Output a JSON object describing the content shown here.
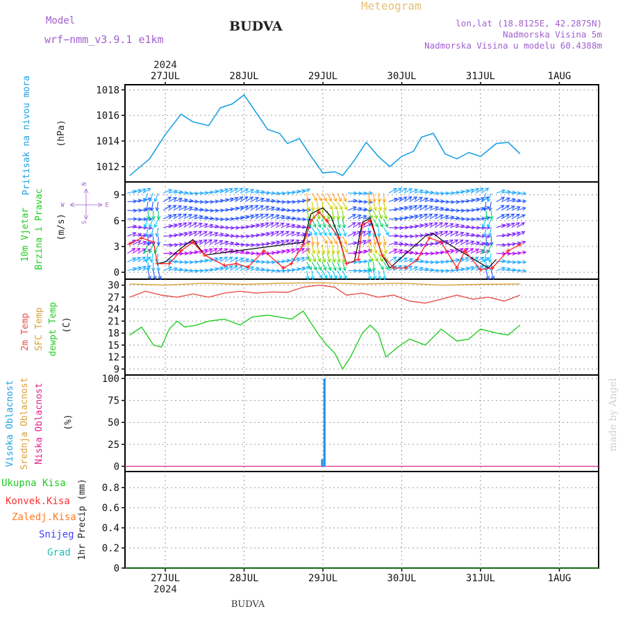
{
  "header": {
    "model_label": "Model",
    "model_value": "wrf−nmm_v3.9.1  e1km",
    "city": "BUDVA",
    "product": "Meteogram",
    "lonlat": "lon,lat (18.8125E, 42.2875N)",
    "altitude": "Nadmorska Visina 5m",
    "model_altitude": "Nadmorska Visina u modelu 60.4388m",
    "footer_city": "BUDVA",
    "watermark": "made by Angel"
  },
  "colors": {
    "pressure": "#1ba1e2",
    "wind_speed": "#ff2020",
    "wind_gust": "#000000",
    "temp2m": "#e8504a",
    "sfc_temp": "#d9a03a",
    "dewpoint": "#22cc22",
    "cloud_high": "#1e8fe8",
    "cloud_mid": "#d9a03a",
    "cloud_low": "#e0208a",
    "precip_total": "#22cc22",
    "precip_conv": "#ff3030",
    "precip_frozen": "#ff7a20",
    "snow": "#4040ff",
    "graupel": "#20c0b0",
    "axis_label_purple": "#a060d0"
  },
  "time_axis": {
    "year": "2024",
    "days": [
      "27JUL",
      "28JUL",
      "29JUL",
      "30JUL",
      "31JUL",
      "1AUG"
    ]
  },
  "panels": {
    "pressure": {
      "title": "Pritisak na nivou mora",
      "unit": "(hPa)",
      "ticks": [
        "1012",
        "1014",
        "1016",
        "1018"
      ]
    },
    "wind": {
      "title1": "10m Vjetar",
      "title2": "Brzina i Pravac",
      "unit": "(m/s)",
      "ticks": [
        "0",
        "3",
        "6",
        "9"
      ],
      "compass": {
        "n": "N",
        "s": "S",
        "w": "W",
        "e": "E"
      }
    },
    "temperature": {
      "label_2m": "2m Temp",
      "label_sfc": "SFC Temp",
      "label_dew": "dewpt Temp",
      "unit": "(C)",
      "ticks": [
        "9",
        "12",
        "15",
        "18",
        "21",
        "24",
        "27",
        "30"
      ]
    },
    "clouds": {
      "label_high": "Visoka Oblacnost",
      "label_mid": "Srednja Oblacnost",
      "label_low": "Niska Oblacnost",
      "unit": "(%)",
      "ticks": [
        "0",
        "25",
        "50",
        "75",
        "100"
      ]
    },
    "precip": {
      "label_total": "Ukupna Kisa",
      "label_conv": "Konvek.Kisa",
      "label_frozen": "Zaledj.Kisa",
      "label_snow": "Snijeg",
      "label_graupel": "Grad",
      "unit": "1hr Precip (mm)",
      "ticks": [
        "0",
        "0.2",
        "0.4",
        "0.6",
        "0.8"
      ]
    }
  },
  "chart_data": [
    {
      "type": "line",
      "title": "Pritisak na nivou mora",
      "ylabel": "(hPa)",
      "ylim": [
        1010.8,
        1018.4
      ],
      "x_days": [
        0.55,
        0.8,
        1.0,
        1.2,
        1.35,
        1.55,
        1.7,
        1.85,
        2.0,
        2.2,
        2.3,
        2.45,
        2.55,
        2.7,
        2.85,
        3.0,
        3.15,
        3.25,
        3.4,
        3.55,
        3.7,
        3.85,
        4.0,
        4.15,
        4.25,
        4.4,
        4.55,
        4.7,
        4.85,
        5.0,
        5.2,
        5.35,
        5.5
      ],
      "values": [
        1011.3,
        1012.6,
        1014.5,
        1016.1,
        1015.5,
        1015.2,
        1016.6,
        1016.9,
        1017.6,
        1015.8,
        1014.9,
        1014.6,
        1013.8,
        1014.2,
        1012.8,
        1011.5,
        1011.6,
        1011.3,
        1012.5,
        1013.9,
        1012.8,
        1012.0,
        1012.8,
        1013.2,
        1014.3,
        1014.6,
        1013.0,
        1012.6,
        1013.1,
        1012.8,
        1013.8,
        1013.9,
        1013.0
      ],
      "yticks": [
        1012,
        1014,
        1016,
        1018
      ]
    },
    {
      "type": "line",
      "title": "10m Vjetar Brzina i Pravac",
      "ylabel": "(m/s)",
      "ylim": [
        -0.8,
        10.5
      ],
      "series": [
        {
          "name": "speed",
          "x_days": [
            0.55,
            0.7,
            0.85,
            0.9,
            1.05,
            1.2,
            1.35,
            1.5,
            1.75,
            1.9,
            2.05,
            2.25,
            2.5,
            2.6,
            2.75,
            2.85,
            2.95,
            3.05,
            3.2,
            3.3,
            3.45,
            3.5,
            3.6,
            3.75,
            3.9,
            4.05,
            4.2,
            4.35,
            4.5,
            4.7,
            4.8,
            5.0,
            5.15,
            5.35,
            5.5
          ],
          "values": [
            3.3,
            4.0,
            3.5,
            1.0,
            1.0,
            2.5,
            3.5,
            2.0,
            0.8,
            1.0,
            0.6,
            2.5,
            0.5,
            1.0,
            3.2,
            6.0,
            7.0,
            6.0,
            4.0,
            1.0,
            1.5,
            5.5,
            6.0,
            2.0,
            0.5,
            0.5,
            1.5,
            4.0,
            3.5,
            0.5,
            2.5,
            0.3,
            0.5,
            2.5,
            3.2
          ]
        },
        {
          "name": "gust",
          "x_days": [
            0.9,
            1.0,
            1.2,
            1.35,
            1.5,
            2.75,
            2.85,
            3.0,
            3.1,
            3.2,
            3.3,
            3.4,
            3.5,
            3.6,
            3.75,
            3.85,
            4.3,
            4.4,
            4.5,
            5.1,
            5.2
          ],
          "values": [
            1.0,
            1.2,
            2.8,
            3.8,
            2.0,
            3.5,
            6.8,
            7.5,
            6.5,
            4.2,
            1.0,
            1.3,
            5.8,
            6.3,
            2.0,
            0.5,
            4.2,
            4.5,
            3.8,
            0.5,
            1.5
          ]
        }
      ],
      "yticks": [
        0,
        3,
        6,
        9
      ]
    },
    {
      "type": "line",
      "title": "2m Temp / SFC Temp / dewpt Temp",
      "ylabel": "(C)",
      "ylim": [
        7.5,
        31.5
      ],
      "series": [
        {
          "name": "2m Temp",
          "x_days": [
            0.55,
            0.75,
            0.95,
            1.15,
            1.35,
            1.55,
            1.75,
            1.95,
            2.15,
            2.35,
            2.55,
            2.75,
            2.95,
            3.15,
            3.3,
            3.5,
            3.7,
            3.9,
            4.1,
            4.3,
            4.5,
            4.7,
            4.9,
            5.1,
            5.3,
            5.5
          ],
          "values": [
            27.0,
            28.5,
            27.5,
            27.0,
            27.8,
            27.0,
            28.0,
            28.5,
            28.0,
            28.3,
            28.2,
            29.5,
            30.0,
            29.5,
            27.5,
            28.0,
            27.0,
            27.5,
            26.0,
            25.5,
            26.5,
            27.5,
            26.5,
            27.0,
            26.0,
            27.5
          ]
        },
        {
          "name": "SFC Temp",
          "x_days": [
            0.55,
            1.0,
            1.5,
            2.0,
            2.5,
            3.0,
            3.5,
            4.0,
            4.5,
            5.0,
            5.5
          ],
          "values": [
            30.3,
            30.0,
            30.5,
            30.2,
            30.5,
            30.6,
            30.3,
            30.5,
            30.0,
            30.2,
            30.3
          ]
        },
        {
          "name": "dewpt Temp",
          "x_days": [
            0.55,
            0.7,
            0.85,
            0.95,
            1.05,
            1.15,
            1.25,
            1.4,
            1.55,
            1.75,
            1.95,
            2.1,
            2.3,
            2.45,
            2.6,
            2.75,
            2.95,
            3.05,
            3.15,
            3.25,
            3.35,
            3.5,
            3.6,
            3.7,
            3.8,
            3.95,
            4.1,
            4.3,
            4.5,
            4.7,
            4.85,
            5.0,
            5.2,
            5.35,
            5.5
          ],
          "values": [
            17.5,
            19.5,
            15.0,
            14.5,
            19.0,
            21.0,
            19.5,
            20.0,
            21.0,
            21.5,
            20.0,
            22.0,
            22.5,
            22.0,
            21.5,
            23.5,
            17.5,
            15.0,
            13.0,
            9.0,
            12.0,
            18.0,
            20.0,
            18.0,
            12.0,
            14.5,
            16.5,
            15.0,
            19.0,
            16.0,
            16.5,
            19.0,
            18.0,
            17.5,
            20.0
          ]
        }
      ],
      "yticks": [
        9,
        12,
        15,
        18,
        21,
        24,
        27,
        30
      ]
    },
    {
      "type": "bar",
      "title": "Visoka / Srednja / Niska Oblacnost",
      "ylabel": "(%)",
      "ylim": [
        -6,
        104
      ],
      "series": [
        {
          "name": "Visoka Oblacnost",
          "x_days": [
            2.99,
            3.02
          ],
          "values": [
            8,
            100
          ]
        }
      ],
      "yticks": [
        0,
        25,
        50,
        75,
        100
      ]
    },
    {
      "type": "bar",
      "title": "1hr Precip",
      "ylabel": "1hr Precip (mm)",
      "ylim": [
        0,
        0.96
      ],
      "series": [],
      "yticks": [
        0,
        0.2,
        0.4,
        0.6,
        0.8
      ]
    }
  ]
}
